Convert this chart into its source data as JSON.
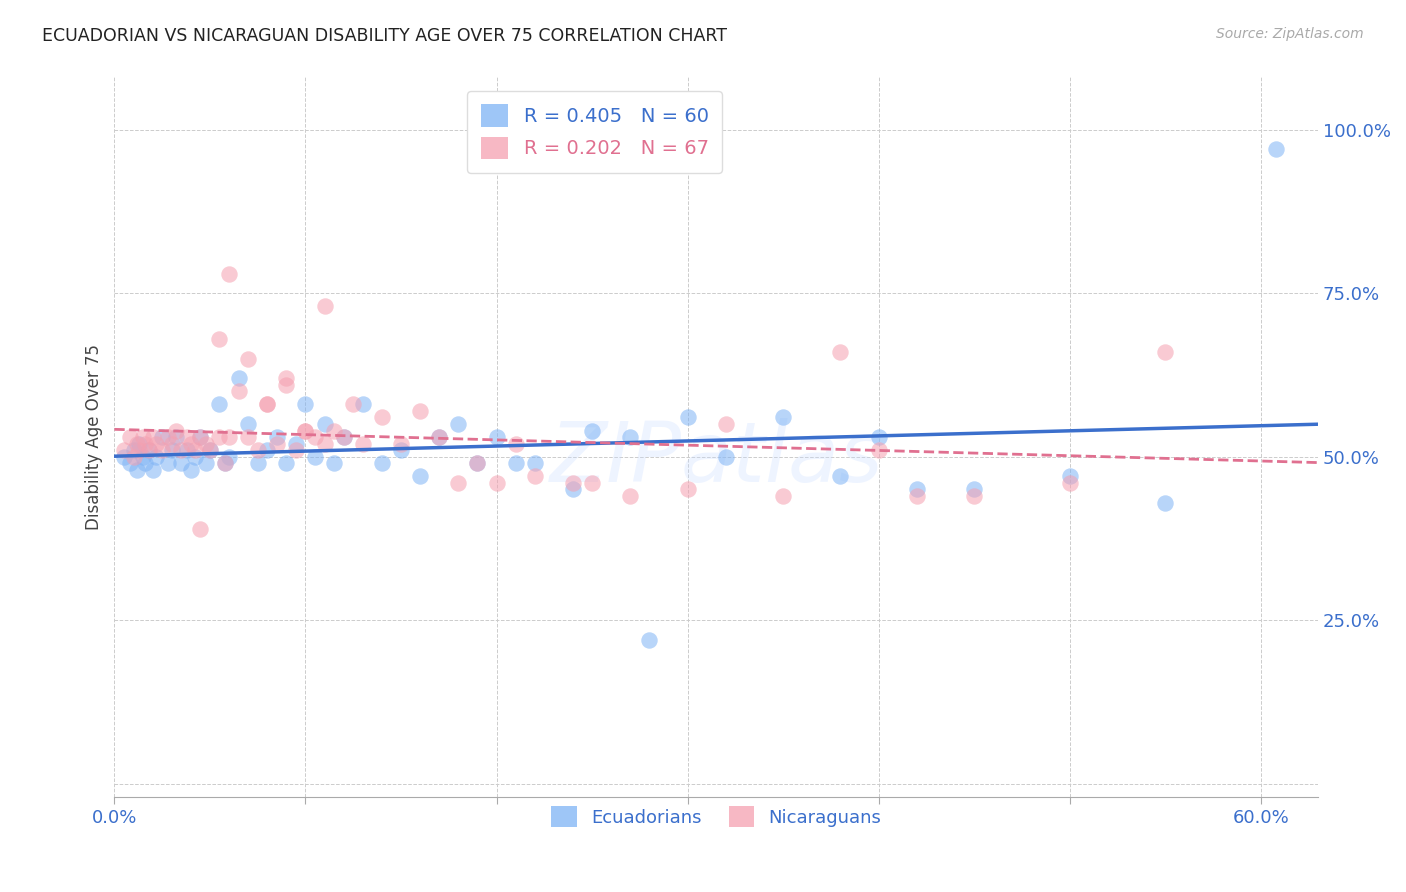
{
  "title": "ECUADORIAN VS NICARAGUAN DISABILITY AGE OVER 75 CORRELATION CHART",
  "source": "Source: ZipAtlas.com",
  "ylabel": "Disability Age Over 75",
  "xlim": [
    0.0,
    0.63
  ],
  "ylim": [
    -0.02,
    1.08
  ],
  "legend_blue_r": "R = 0.405",
  "legend_blue_n": "N = 60",
  "legend_pink_r": "R = 0.202",
  "legend_pink_n": "N = 67",
  "blue_color": "#7EB3F5",
  "pink_color": "#F5A0B0",
  "line_blue": "#3B6FCC",
  "line_pink": "#E07090",
  "watermark": "ZIPatlas",
  "blue_x": [
    0.005,
    0.008,
    0.01,
    0.012,
    0.013,
    0.015,
    0.016,
    0.018,
    0.02,
    0.022,
    0.025,
    0.028,
    0.03,
    0.032,
    0.035,
    0.038,
    0.04,
    0.042,
    0.045,
    0.048,
    0.05,
    0.055,
    0.058,
    0.06,
    0.065,
    0.07,
    0.075,
    0.08,
    0.085,
    0.09,
    0.095,
    0.1,
    0.105,
    0.11,
    0.115,
    0.12,
    0.13,
    0.14,
    0.15,
    0.16,
    0.17,
    0.18,
    0.19,
    0.2,
    0.21,
    0.22,
    0.24,
    0.25,
    0.27,
    0.3,
    0.32,
    0.35,
    0.38,
    0.4,
    0.42,
    0.45,
    0.5,
    0.55,
    0.28,
    0.608
  ],
  "blue_y": [
    0.5,
    0.49,
    0.51,
    0.48,
    0.52,
    0.5,
    0.49,
    0.51,
    0.48,
    0.5,
    0.53,
    0.49,
    0.51,
    0.53,
    0.49,
    0.51,
    0.48,
    0.5,
    0.53,
    0.49,
    0.51,
    0.58,
    0.49,
    0.5,
    0.62,
    0.55,
    0.49,
    0.51,
    0.53,
    0.49,
    0.52,
    0.58,
    0.5,
    0.55,
    0.49,
    0.53,
    0.58,
    0.49,
    0.51,
    0.47,
    0.53,
    0.55,
    0.49,
    0.53,
    0.49,
    0.49,
    0.45,
    0.54,
    0.53,
    0.56,
    0.5,
    0.56,
    0.47,
    0.53,
    0.45,
    0.45,
    0.47,
    0.43,
    0.22,
    0.97
  ],
  "pink_x": [
    0.005,
    0.008,
    0.01,
    0.012,
    0.013,
    0.015,
    0.016,
    0.018,
    0.02,
    0.022,
    0.025,
    0.028,
    0.03,
    0.032,
    0.035,
    0.038,
    0.04,
    0.042,
    0.045,
    0.048,
    0.05,
    0.055,
    0.058,
    0.06,
    0.065,
    0.07,
    0.075,
    0.08,
    0.085,
    0.09,
    0.095,
    0.1,
    0.105,
    0.11,
    0.115,
    0.12,
    0.13,
    0.14,
    0.15,
    0.16,
    0.17,
    0.18,
    0.19,
    0.2,
    0.21,
    0.22,
    0.24,
    0.25,
    0.27,
    0.3,
    0.32,
    0.35,
    0.38,
    0.4,
    0.42,
    0.45,
    0.5,
    0.55,
    0.07,
    0.08,
    0.09,
    0.1,
    0.11,
    0.125,
    0.06,
    0.055,
    0.045
  ],
  "pink_y": [
    0.51,
    0.53,
    0.5,
    0.52,
    0.51,
    0.53,
    0.52,
    0.51,
    0.53,
    0.52,
    0.51,
    0.53,
    0.52,
    0.54,
    0.51,
    0.53,
    0.52,
    0.51,
    0.53,
    0.52,
    0.51,
    0.53,
    0.49,
    0.53,
    0.6,
    0.53,
    0.51,
    0.58,
    0.52,
    0.61,
    0.51,
    0.54,
    0.53,
    0.52,
    0.54,
    0.53,
    0.52,
    0.56,
    0.52,
    0.57,
    0.53,
    0.46,
    0.49,
    0.46,
    0.52,
    0.47,
    0.46,
    0.46,
    0.44,
    0.45,
    0.55,
    0.44,
    0.66,
    0.51,
    0.44,
    0.44,
    0.46,
    0.66,
    0.65,
    0.58,
    0.62,
    0.54,
    0.73,
    0.58,
    0.78,
    0.68,
    0.39
  ]
}
